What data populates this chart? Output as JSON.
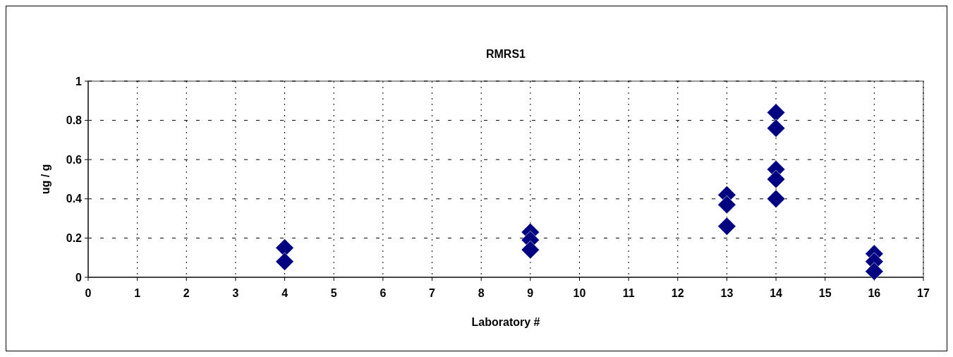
{
  "chart_data": {
    "type": "scatter",
    "title": "RMRS1",
    "xlabel": "Laboratory #",
    "ylabel": "ug / g",
    "series": [
      {
        "color": "#000080",
        "x": [
          4,
          4,
          9,
          9,
          9,
          13,
          13,
          13,
          14,
          14,
          14,
          14,
          14,
          16,
          16,
          16
        ],
        "values": [
          0.15,
          0.08,
          0.23,
          0.19,
          0.14,
          0.42,
          0.37,
          0.26,
          0.84,
          0.76,
          0.55,
          0.5,
          0.4,
          0.12,
          0.08,
          0.03
        ]
      }
    ],
    "xlim": [
      0,
      17
    ],
    "xticks": [
      0,
      1,
      2,
      3,
      4,
      5,
      6,
      7,
      8,
      9,
      10,
      11,
      12,
      13,
      14,
      15,
      16,
      17
    ],
    "ylim": [
      0,
      1
    ],
    "yticks": [
      0,
      0.2,
      0.4,
      0.6,
      0.8,
      1
    ],
    "grid": true,
    "marker": "diamond"
  }
}
